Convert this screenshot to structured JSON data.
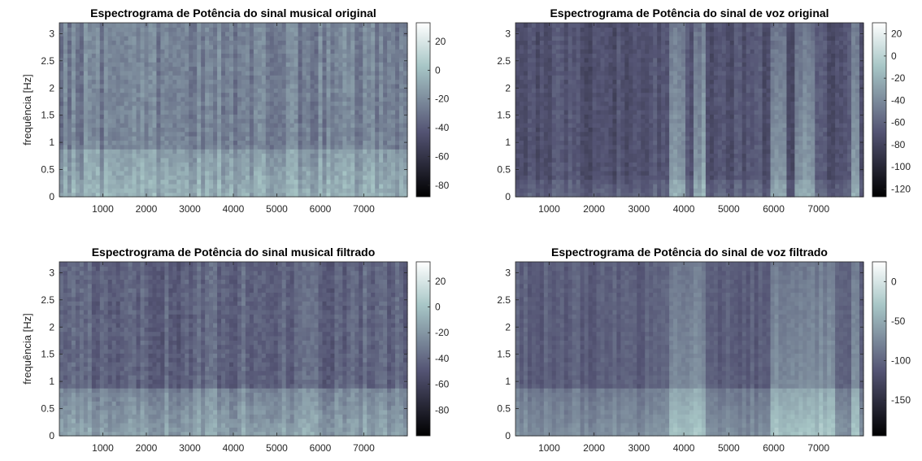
{
  "figure": {
    "colormap": "bone",
    "colors": {
      "background": "#ffffff",
      "axis": "#262626",
      "bone_dark": "#000000",
      "bone_mid": "#545474",
      "bone_light": "#ffffff"
    }
  },
  "chart_data": [
    {
      "type": "heatmap",
      "title": "Espectrograma de Potência do sinal musical original",
      "ylabel": "frequência [Hz]",
      "xlim": [
        0,
        8000
      ],
      "ylim": [
        0,
        3.2
      ],
      "x_ticks": [
        "1000",
        "2000",
        "3000",
        "4000",
        "5000",
        "6000",
        "7000"
      ],
      "y_ticks": [
        "0",
        "0.5",
        "1",
        "1.5",
        "2",
        "2.5",
        "3"
      ],
      "colorbar": {
        "range": [
          -88,
          33
        ],
        "ticks": [
          "20",
          "0",
          "-20",
          "-40",
          "-60",
          "-80"
        ],
        "tick_values": [
          20,
          0,
          -20,
          -40,
          -60,
          -80
        ]
      },
      "base_level": -25,
      "low_band": {
        "upto": 0.9,
        "boost": 18
      },
      "bright_regions": []
    },
    {
      "type": "heatmap",
      "title": "Espectrograma de Potência do sinal de voz original",
      "ylabel": "",
      "xlim": [
        250,
        8000
      ],
      "ylim": [
        0,
        3.2
      ],
      "x_ticks": [
        "1000",
        "2000",
        "3000",
        "4000",
        "5000",
        "6000",
        "7000"
      ],
      "y_ticks": [
        "0",
        "0.5",
        "1",
        "1.5",
        "2",
        "2.5",
        "3"
      ],
      "colorbar": {
        "range": [
          -127,
          30
        ],
        "ticks": [
          "20",
          "0",
          "-20",
          "-40",
          "-60",
          "-80",
          "-100",
          "-120"
        ],
        "tick_values": [
          20,
          0,
          -20,
          -40,
          -60,
          -80,
          -100,
          -120
        ]
      },
      "base_level": -70,
      "low_band": {
        "upto": 0.3,
        "boost": 10
      },
      "bright_regions": [
        [
          3650,
          4000
        ],
        [
          4250,
          4500
        ],
        [
          5950,
          6250
        ],
        [
          6450,
          6950
        ],
        [
          7700,
          7900
        ]
      ]
    },
    {
      "type": "heatmap",
      "title": "Espectrograma de Potência do sinal musical filtrado",
      "ylabel": "frequência [Hz]",
      "xlim": [
        0,
        8000
      ],
      "ylim": [
        0,
        3.2
      ],
      "x_ticks": [
        "1000",
        "2000",
        "3000",
        "4000",
        "5000",
        "6000",
        "7000"
      ],
      "y_ticks": [
        "0",
        "0.5",
        "1",
        "1.5",
        "2",
        "2.5",
        "3"
      ],
      "colorbar": {
        "range": [
          -100,
          35
        ],
        "ticks": [
          "20",
          "0",
          "-20",
          "-40",
          "-60",
          "-80"
        ],
        "tick_values": [
          20,
          0,
          -20,
          -40,
          -60,
          -80
        ]
      },
      "base_level": -42,
      "low_band": {
        "upto": 0.9,
        "boost": 28
      },
      "bright_regions": []
    },
    {
      "type": "heatmap",
      "title": "Espectrograma de Potência do sinal de voz filtrado",
      "ylabel": "",
      "xlim": [
        250,
        8000
      ],
      "ylim": [
        0,
        3.2
      ],
      "x_ticks": [
        "1000",
        "2000",
        "3000",
        "4000",
        "5000",
        "6000",
        "7000"
      ],
      "y_ticks": [
        "0",
        "0.5",
        "1",
        "1.5",
        "2",
        "2.5",
        "3"
      ],
      "colorbar": {
        "range": [
          -195,
          25
        ],
        "ticks": [
          "0",
          "-50",
          "-100",
          "-150"
        ],
        "tick_values": [
          0,
          -50,
          -100,
          -150
        ]
      },
      "base_level": -105,
      "low_band": {
        "upto": 0.9,
        "boost": 35
      },
      "bright_regions": [
        [
          3650,
          4500
        ],
        [
          5950,
          7400
        ],
        [
          7700,
          7900
        ]
      ]
    }
  ]
}
